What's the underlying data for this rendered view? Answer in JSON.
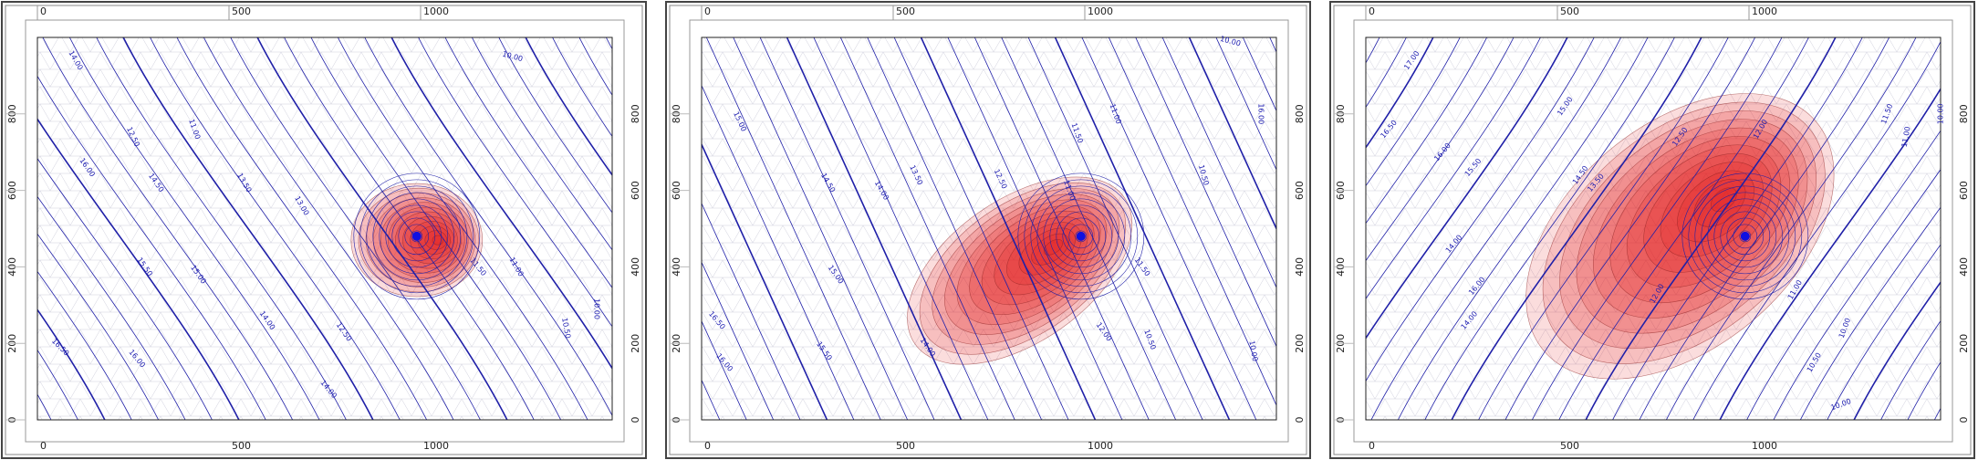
{
  "panels": [
    {
      "x_ticks": [
        0,
        500,
        1000
      ],
      "y_ticks": [
        0,
        200,
        400,
        600,
        800
      ],
      "contour_labels": [
        "14.00",
        "12.50",
        "11.00",
        "10.00",
        "16.00",
        "14.50",
        "13.50",
        "13.00",
        "11.50",
        "15.50",
        "15.00",
        "14.00",
        "12.50",
        "16.50",
        "16.00",
        "14.00",
        "11.00",
        "10.50",
        "10.00"
      ]
    },
    {
      "x_ticks": [
        0,
        500,
        1000
      ],
      "y_ticks": [
        0,
        200,
        400,
        600,
        800
      ],
      "contour_labels": [
        "15.00",
        "14.50",
        "14.00",
        "13.50",
        "12.50",
        "11.50",
        "11.00",
        "10.50",
        "10.00",
        "16.00",
        "15.50",
        "15.00",
        "14.00",
        "11.50",
        "12.00",
        "10.50",
        "16.50",
        "16.00",
        "10.00",
        "11.00"
      ]
    },
    {
      "x_ticks": [
        0,
        500,
        1000
      ],
      "y_ticks": [
        0,
        200,
        400,
        600,
        800
      ],
      "contour_labels": [
        "17.00",
        "16.50",
        "16.00",
        "15.50",
        "15.00",
        "14.00",
        "13.50",
        "12.50",
        "12.00",
        "11.50",
        "11.00",
        "10.50",
        "10.00",
        "16.00",
        "14.50",
        "14.00",
        "12.00",
        "11.00",
        "10.00",
        "10.00"
      ]
    }
  ]
}
